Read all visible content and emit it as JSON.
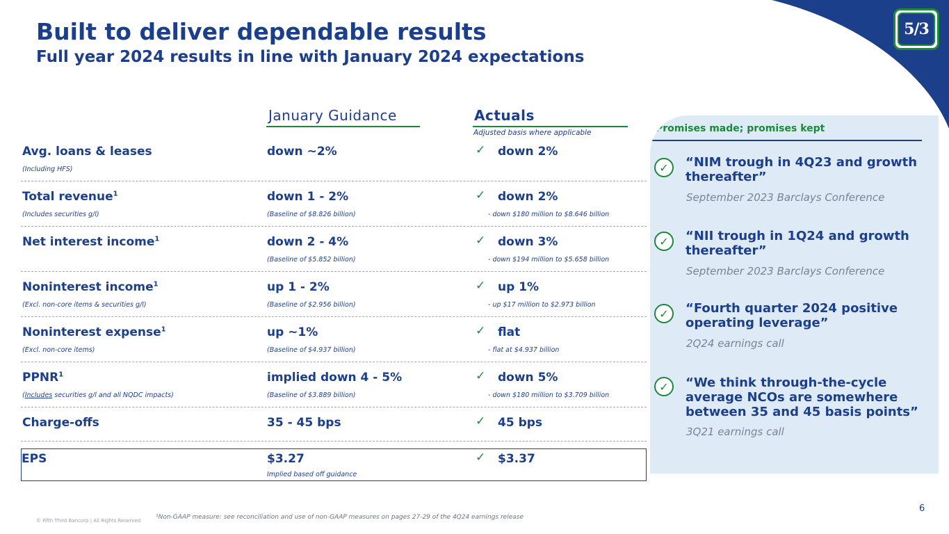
{
  "title": "Built to deliver dependable results",
  "subtitle": "Full year 2024 results in line with January 2024 expectations",
  "logo_text": "5/3",
  "columns": {
    "guidance": "January Guidance",
    "actuals": "Actuals",
    "actuals_note": "Adjusted basis where applicable"
  },
  "rows": [
    {
      "metric": "Avg. loans & leases",
      "footnote_mark": "",
      "sub": "(Including HFS)",
      "guidance": "down ~2%",
      "guidance_sub": "",
      "actual": "down 2%",
      "actual_sub": ""
    },
    {
      "metric": "Total revenue",
      "footnote_mark": "1",
      "sub": "(Includes securities g/l)",
      "guidance": "down 1 - 2%",
      "guidance_sub": "(Baseline of $8.826 billion)",
      "actual": "down 2%",
      "actual_sub": "- down $180 million to $8.646 billion"
    },
    {
      "metric": "Net interest income",
      "footnote_mark": "1",
      "sub": "",
      "guidance": "down 2 - 4%",
      "guidance_sub": "(Baseline of $5.852 billion)",
      "actual": "down 3%",
      "actual_sub": "- down $194 million to $5.658 billion"
    },
    {
      "metric": "Noninterest income",
      "footnote_mark": "1",
      "sub": "(Excl. non-core items & securities g/l)",
      "guidance": "up 1 - 2%",
      "guidance_sub": "(Baseline of $2.956 billion)",
      "actual": "up 1%",
      "actual_sub": "- up $17 million to $2.973 billion"
    },
    {
      "metric": "Noninterest expense",
      "footnote_mark": "1",
      "sub": "(Excl. non-core items)",
      "guidance": "up ~1%",
      "guidance_sub": "(Baseline of $4.937 billion)",
      "actual": "flat",
      "actual_sub": "- flat at $4.937 billion"
    },
    {
      "metric": "PPNR",
      "footnote_mark": "1",
      "sub_underlined": "Includes",
      "sub_rest": " securities g/l and all NQDC impacts)",
      "sub_open": "(",
      "guidance": "implied down 4 - 5%",
      "guidance_sub": "(Baseline of $3.889 billion)",
      "actual": "down 5%",
      "actual_sub": "- down $180 million to $3.709 billion"
    },
    {
      "metric": "Charge-offs",
      "footnote_mark": "",
      "sub": "",
      "guidance": "35 - 45 bps",
      "guidance_sub": "",
      "actual": "45 bps",
      "actual_sub": ""
    }
  ],
  "eps": {
    "metric": "EPS",
    "guidance": "$3.27",
    "guidance_sub": "Implied based off guidance",
    "actual": "$3.37"
  },
  "check_glyph": "✓",
  "panel": {
    "heading": "Promises made; promises kept",
    "items": [
      {
        "quote": "“NIM trough in 4Q23 and growth thereafter”",
        "source": "September 2023 Barclays Conference"
      },
      {
        "quote": "“NII trough in 1Q24 and growth thereafter”",
        "source": "September 2023 Barclays Conference"
      },
      {
        "quote": "“Fourth quarter 2024 positive operating leverage”",
        "source": "2Q24 earnings call"
      },
      {
        "quote": "“We think through-the-cycle average NCOs are somewhere between 35 and 45 basis points”",
        "source": "3Q21 earnings call"
      }
    ]
  },
  "footnote": "¹Non-GAAP measure: see reconciliation and use of non-GAAP measures on pages 27-29 of the 4Q24 earnings release",
  "copyright": "© Fifth Third Bancorp | All Rights Reserved",
  "page_number": "6",
  "colors": {
    "brand_blue": "#1c3f8c",
    "brand_green": "#1a8a3a",
    "panel_bg": "#dfeaf7"
  }
}
